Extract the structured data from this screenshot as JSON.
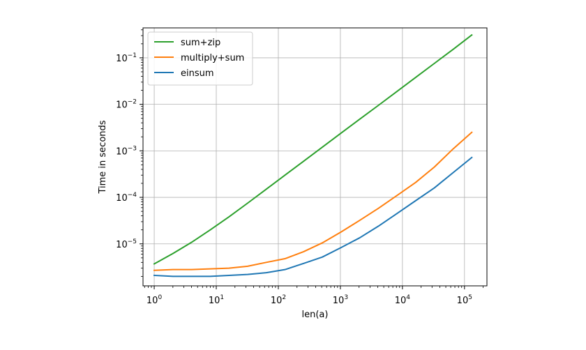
{
  "chart_data": {
    "type": "line",
    "xscale": "log",
    "yscale": "log",
    "xlabel": "len(a)",
    "ylabel": "Time in seconds",
    "xlim": [
      0.66,
      230000
    ],
    "ylim": [
      1.25e-06,
      0.44
    ],
    "grid": true,
    "legend_position": "upper-left",
    "xticks": [
      {
        "value": 1,
        "base": "10",
        "exp": "0"
      },
      {
        "value": 10,
        "base": "10",
        "exp": "1"
      },
      {
        "value": 100,
        "base": "10",
        "exp": "2"
      },
      {
        "value": 1000,
        "base": "10",
        "exp": "3"
      },
      {
        "value": 10000,
        "base": "10",
        "exp": "4"
      },
      {
        "value": 100000,
        "base": "10",
        "exp": "5"
      }
    ],
    "yticks": [
      {
        "value": 1e-05,
        "base": "10",
        "exp": "−5"
      },
      {
        "value": 0.0001,
        "base": "10",
        "exp": "−4"
      },
      {
        "value": 0.001,
        "base": "10",
        "exp": "−3"
      },
      {
        "value": 0.01,
        "base": "10",
        "exp": "−2"
      },
      {
        "value": 0.1,
        "base": "10",
        "exp": "−1"
      }
    ],
    "series": [
      {
        "name": "sum+zip",
        "color": "#2ca02c",
        "x": [
          1,
          2,
          4,
          8,
          16,
          32,
          64,
          128,
          256,
          512,
          1024,
          2048,
          4096,
          8192,
          16384,
          32768,
          65536,
          131072
        ],
        "y": [
          3.7e-06,
          6.2e-06,
          1.08e-05,
          2e-05,
          3.8e-05,
          7.5e-05,
          0.00015,
          0.0003,
          0.0006,
          0.0012,
          0.0024,
          0.0048,
          0.0095,
          0.019,
          0.038,
          0.076,
          0.152,
          0.31
        ]
      },
      {
        "name": "multiply+sum",
        "color": "#ff7f0e",
        "x": [
          1,
          2,
          4,
          8,
          16,
          32,
          64,
          128,
          256,
          512,
          1024,
          2048,
          4096,
          8192,
          16384,
          32768,
          65536,
          131072
        ],
        "y": [
          2.7e-06,
          2.8e-06,
          2.8e-06,
          2.9e-06,
          3e-06,
          3.3e-06,
          4e-06,
          4.8e-06,
          6.8e-06,
          1.05e-05,
          1.8e-05,
          3.2e-05,
          5.8e-05,
          0.00011,
          0.00021,
          0.00045,
          0.0011,
          0.0025
        ]
      },
      {
        "name": "einsum",
        "color": "#1f77b4",
        "x": [
          1,
          2,
          4,
          8,
          16,
          32,
          64,
          128,
          256,
          512,
          1024,
          2048,
          4096,
          8192,
          16384,
          32768,
          65536,
          131072
        ],
        "y": [
          2.1e-06,
          2e-06,
          2e-06,
          2e-06,
          2.1e-06,
          2.2e-06,
          2.4e-06,
          2.8e-06,
          3.8e-06,
          5.2e-06,
          8.3e-06,
          1.35e-05,
          2.4e-05,
          4.5e-05,
          8.5e-05,
          0.00016,
          0.00034,
          0.00072
        ]
      }
    ]
  }
}
